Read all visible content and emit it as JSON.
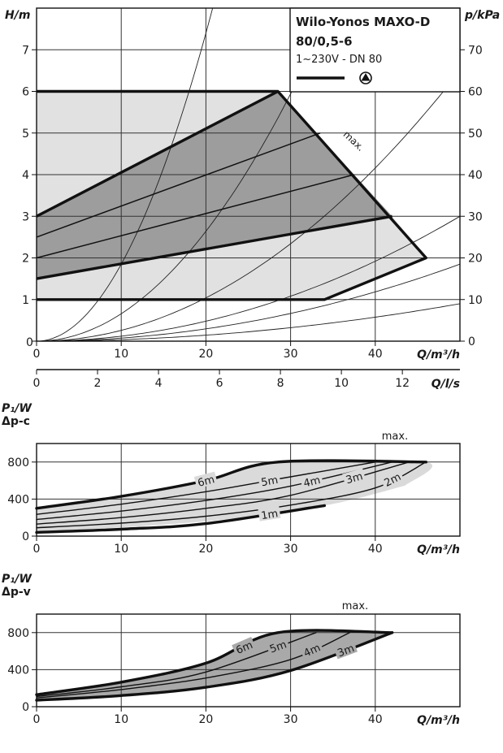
{
  "chart_data": [
    {
      "id": "head_chart",
      "type": "line",
      "title": "Wilo-Yonos MAXO-D",
      "subtitle": "80/0,5-6",
      "spec": "1~230V - DN 80",
      "xlabel": "Q/m³/h",
      "ylabel": "H/m",
      "y2label": "p/kPa",
      "x2label": "Q/l/s",
      "xlim": [
        0,
        50
      ],
      "ylim": [
        0,
        8
      ],
      "y2lim": [
        0,
        80
      ],
      "x2lim": [
        0,
        13.889
      ],
      "xticks": [
        0,
        10,
        20,
        30,
        40
      ],
      "yticks": [
        0,
        1,
        2,
        3,
        4,
        5,
        6,
        7
      ],
      "y2ticks": [
        0,
        10,
        20,
        30,
        40,
        50,
        60,
        70
      ],
      "x2ticks": [
        0,
        2,
        4,
        6,
        8,
        10,
        12
      ],
      "annotation": "max.",
      "grid": true,
      "regions": [
        {
          "name": "light",
          "points": [
            [
              0,
              1
            ],
            [
              34,
              1
            ],
            [
              46,
              2
            ],
            [
              42,
              3
            ],
            [
              28.5,
              6
            ],
            [
              0,
              6
            ]
          ]
        },
        {
          "name": "dark",
          "points": [
            [
              0,
              1.5
            ],
            [
              42,
              3
            ],
            [
              28.5,
              6
            ],
            [
              0,
              3
            ]
          ]
        }
      ],
      "series": [
        {
          "points": [
            [
              0,
              6
            ],
            [
              28.5,
              6
            ],
            [
              46,
              2
            ],
            [
              34,
              1
            ],
            [
              0,
              1
            ]
          ]
        },
        {
          "points": [
            [
              0,
              3
            ],
            [
              28.5,
              6
            ]
          ]
        },
        {
          "points": [
            [
              0,
              1.5
            ],
            [
              42,
              3
            ]
          ]
        },
        {
          "points": [
            [
              0,
              2.5
            ],
            [
              33.5,
              5
            ]
          ]
        },
        {
          "points": [
            [
              0,
              2
            ],
            [
              37.5,
              4
            ]
          ]
        }
      ],
      "system_curves": [
        {
          "k": 0.0185
        },
        {
          "k": 0.0066
        },
        {
          "k": 0.0026
        },
        {
          "k": 0.0012
        },
        {
          "k": 0.00074
        },
        {
          "k": 0.00036
        }
      ]
    },
    {
      "id": "power_dpc",
      "type": "line",
      "ylabel_line1": "P₁/W",
      "ylabel_line2": "Δp-c",
      "xlabel": "Q/m³/h",
      "xlim": [
        0,
        50
      ],
      "ylim": [
        0,
        1000
      ],
      "xticks": [
        0,
        10,
        20,
        30,
        40
      ],
      "yticks": [
        0,
        400,
        800
      ],
      "annotation": "max.",
      "grid": true,
      "region": [
        [
          0,
          300
        ],
        [
          20,
          595
        ],
        [
          28.5,
          800
        ],
        [
          46,
          800
        ],
        [
          43.5,
          545
        ],
        [
          34,
          330
        ],
        [
          20,
          160
        ],
        [
          0,
          40
        ]
      ],
      "series": [
        {
          "name": "6m",
          "label_at": 20,
          "bold": true,
          "points": [
            [
              0,
              300
            ],
            [
              10,
              430
            ],
            [
              20,
              600
            ],
            [
              28.5,
              800
            ],
            [
              46,
              800
            ]
          ]
        },
        {
          "name": "5m",
          "label_at": 27.5,
          "bold": false,
          "points": [
            [
              0,
              235
            ],
            [
              10,
              345
            ],
            [
              20,
              480
            ],
            [
              30,
              640
            ],
            [
              40,
              800
            ]
          ]
        },
        {
          "name": "4m",
          "label_at": 32.5,
          "bold": false,
          "points": [
            [
              0,
              180
            ],
            [
              10,
              270
            ],
            [
              20,
              385
            ],
            [
              30,
              540
            ],
            [
              42,
              800
            ]
          ]
        },
        {
          "name": "3m",
          "label_at": 37.5,
          "bold": false,
          "points": [
            [
              0,
              130
            ],
            [
              10,
              200
            ],
            [
              20,
              300
            ],
            [
              30,
              440
            ],
            [
              44,
              800
            ]
          ]
        },
        {
          "name": "2m",
          "label_at": 42,
          "bold": false,
          "points": [
            [
              0,
              90
            ],
            [
              10,
              140
            ],
            [
              20,
              215
            ],
            [
              30,
              335
            ],
            [
              40,
              520
            ],
            [
              46,
              800
            ]
          ]
        },
        {
          "name": "1m",
          "label_at": 27.5,
          "bold": true,
          "points": [
            [
              0,
              40
            ],
            [
              10,
              75
            ],
            [
              20,
              135
            ],
            [
              34,
              330
            ]
          ]
        }
      ]
    },
    {
      "id": "power_dpv",
      "type": "line",
      "ylabel_line1": "P₁/W",
      "ylabel_line2": "Δp-v",
      "xlabel": "Q/m³/h",
      "xlim": [
        0,
        50
      ],
      "ylim": [
        0,
        1000
      ],
      "xticks": [
        0,
        10,
        20,
        30,
        40
      ],
      "yticks": [
        0,
        400,
        800
      ],
      "annotation": "max.",
      "grid": true,
      "region": [
        [
          0,
          130
        ],
        [
          10,
          265
        ],
        [
          20,
          470
        ],
        [
          28.5,
          800
        ],
        [
          42,
          800
        ],
        [
          30,
          390
        ],
        [
          20,
          210
        ],
        [
          10,
          120
        ],
        [
          0,
          70
        ]
      ],
      "series": [
        {
          "name": "6m",
          "label_at": 24.5,
          "bold": true,
          "points": [
            [
              0,
              130
            ],
            [
              10,
              265
            ],
            [
              20,
              470
            ],
            [
              28.5,
              800
            ],
            [
              42,
              800
            ]
          ]
        },
        {
          "name": "5m",
          "label_at": 28.5,
          "bold": false,
          "points": [
            [
              0,
              110
            ],
            [
              10,
              215
            ],
            [
              20,
              375
            ],
            [
              33,
              800
            ]
          ]
        },
        {
          "name": "4m",
          "label_at": 32.5,
          "bold": false,
          "points": [
            [
              0,
              95
            ],
            [
              10,
              185
            ],
            [
              20,
              310
            ],
            [
              30,
              510
            ],
            [
              37,
              800
            ]
          ]
        },
        {
          "name": "3m",
          "label_at": 36.5,
          "bold": true,
          "points": [
            [
              0,
              70
            ],
            [
              10,
              120
            ],
            [
              20,
              210
            ],
            [
              30,
              390
            ],
            [
              42,
              800
            ]
          ]
        }
      ]
    }
  ]
}
